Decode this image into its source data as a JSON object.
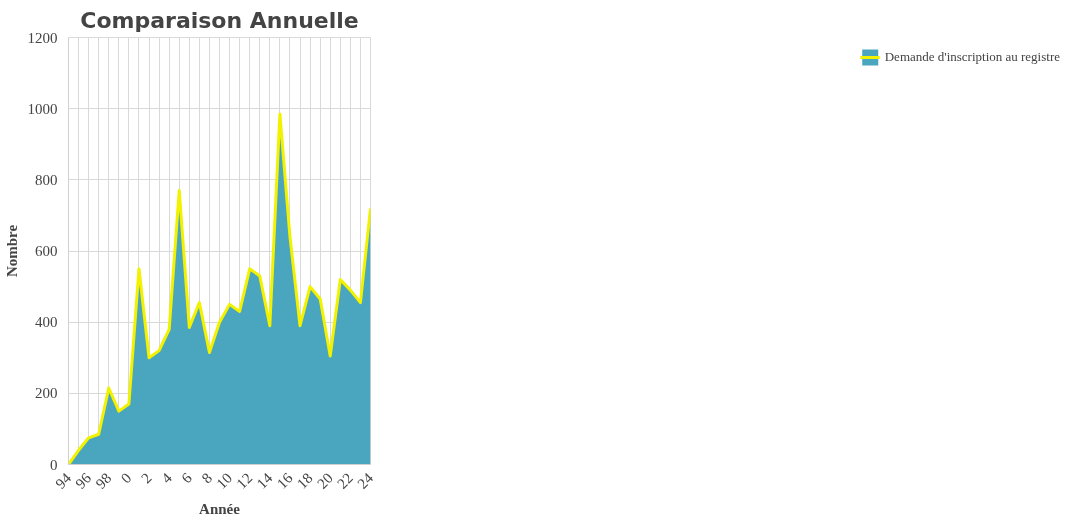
{
  "chart_data": {
    "type": "area",
    "title": "Comparaison Annuelle",
    "xlabel": "Année",
    "ylabel": "Nombre",
    "categories": [
      "94",
      null,
      "96",
      null,
      "98",
      null,
      "0",
      null,
      "2",
      null,
      "4",
      null,
      "6",
      null,
      "8",
      null,
      "10",
      null,
      "12",
      null,
      "14",
      null,
      "16",
      null,
      "18",
      null,
      "20",
      null,
      "22",
      null,
      "24"
    ],
    "series": [
      {
        "name": "Demande d'inscription au registre",
        "color": "#4aa5be",
        "values": [
          0,
          40,
          75,
          85,
          215,
          150,
          170,
          550,
          300,
          320,
          380,
          770,
          385,
          455,
          315,
          400,
          450,
          430,
          550,
          530,
          390,
          985,
          640,
          390,
          500,
          465,
          305,
          520,
          490,
          455,
          720
        ]
      }
    ],
    "ylim": [
      0,
      1200
    ],
    "yticks": [
      0,
      200,
      400,
      600,
      800,
      1000,
      1200
    ],
    "grid": true,
    "legend": "right"
  }
}
